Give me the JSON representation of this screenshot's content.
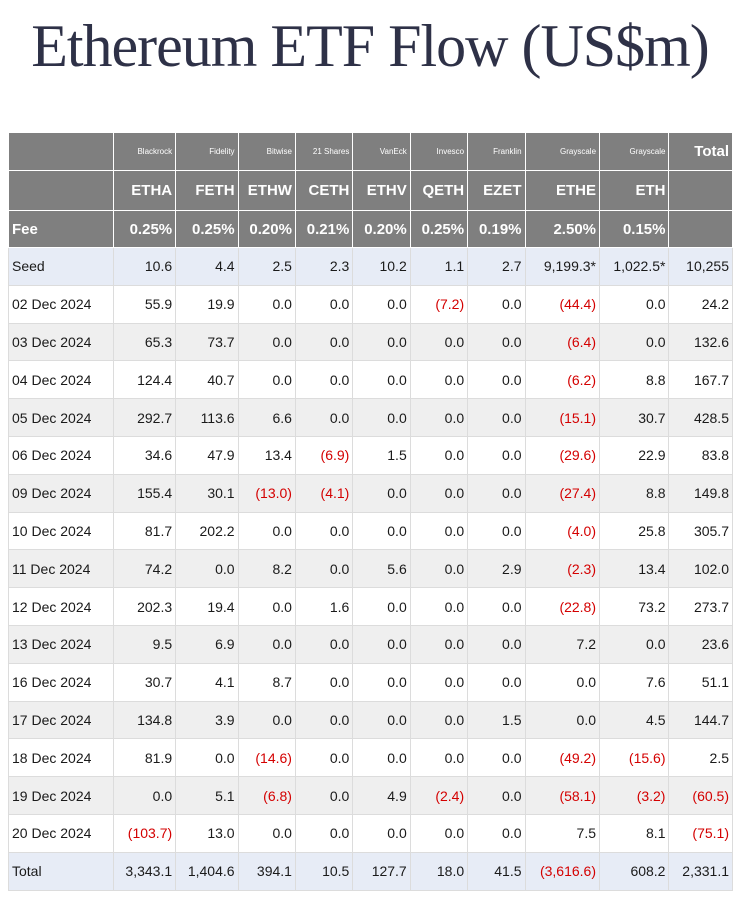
{
  "title": "Ethereum ETF Flow (US$m)",
  "table": {
    "issuers": [
      "",
      "Blackrock",
      "Fidelity",
      "Bitwise",
      "21 Shares",
      "VanEck",
      "Invesco",
      "Franklin",
      "Grayscale",
      "Grayscale",
      "Total"
    ],
    "tickers": [
      "",
      "ETHA",
      "FETH",
      "ETHW",
      "CETH",
      "ETHV",
      "QETH",
      "EZET",
      "ETHE",
      "ETH",
      ""
    ],
    "fees": [
      "Fee",
      "0.25%",
      "0.25%",
      "0.20%",
      "0.21%",
      "0.20%",
      "0.25%",
      "0.19%",
      "2.50%",
      "0.15%",
      ""
    ],
    "rows": [
      [
        "Seed",
        "10.6",
        "4.4",
        "2.5",
        "2.3",
        "10.2",
        "1.1",
        "2.7",
        "9,199.3*",
        "1,022.5*",
        "10,255"
      ],
      [
        "02 Dec 2024",
        "55.9",
        "19.9",
        "0.0",
        "0.0",
        "0.0",
        "(7.2)",
        "0.0",
        "(44.4)",
        "0.0",
        "24.2"
      ],
      [
        "03 Dec 2024",
        "65.3",
        "73.7",
        "0.0",
        "0.0",
        "0.0",
        "0.0",
        "0.0",
        "(6.4)",
        "0.0",
        "132.6"
      ],
      [
        "04 Dec 2024",
        "124.4",
        "40.7",
        "0.0",
        "0.0",
        "0.0",
        "0.0",
        "0.0",
        "(6.2)",
        "8.8",
        "167.7"
      ],
      [
        "05 Dec 2024",
        "292.7",
        "113.6",
        "6.6",
        "0.0",
        "0.0",
        "0.0",
        "0.0",
        "(15.1)",
        "30.7",
        "428.5"
      ],
      [
        "06 Dec 2024",
        "34.6",
        "47.9",
        "13.4",
        "(6.9)",
        "1.5",
        "0.0",
        "0.0",
        "(29.6)",
        "22.9",
        "83.8"
      ],
      [
        "09 Dec 2024",
        "155.4",
        "30.1",
        "(13.0)",
        "(4.1)",
        "0.0",
        "0.0",
        "0.0",
        "(27.4)",
        "8.8",
        "149.8"
      ],
      [
        "10 Dec 2024",
        "81.7",
        "202.2",
        "0.0",
        "0.0",
        "0.0",
        "0.0",
        "0.0",
        "(4.0)",
        "25.8",
        "305.7"
      ],
      [
        "11 Dec 2024",
        "74.2",
        "0.0",
        "8.2",
        "0.0",
        "5.6",
        "0.0",
        "2.9",
        "(2.3)",
        "13.4",
        "102.0"
      ],
      [
        "12 Dec 2024",
        "202.3",
        "19.4",
        "0.0",
        "1.6",
        "0.0",
        "0.0",
        "0.0",
        "(22.8)",
        "73.2",
        "273.7"
      ],
      [
        "13 Dec 2024",
        "9.5",
        "6.9",
        "0.0",
        "0.0",
        "0.0",
        "0.0",
        "0.0",
        "7.2",
        "0.0",
        "23.6"
      ],
      [
        "16 Dec 2024",
        "30.7",
        "4.1",
        "8.7",
        "0.0",
        "0.0",
        "0.0",
        "0.0",
        "0.0",
        "7.6",
        "51.1"
      ],
      [
        "17 Dec 2024",
        "134.8",
        "3.9",
        "0.0",
        "0.0",
        "0.0",
        "0.0",
        "1.5",
        "0.0",
        "4.5",
        "144.7"
      ],
      [
        "18 Dec 2024",
        "81.9",
        "0.0",
        "(14.6)",
        "0.0",
        "0.0",
        "0.0",
        "0.0",
        "(49.2)",
        "(15.6)",
        "2.5"
      ],
      [
        "19 Dec 2024",
        "0.0",
        "5.1",
        "(6.8)",
        "0.0",
        "4.9",
        "(2.4)",
        "0.0",
        "(58.1)",
        "(3.2)",
        "(60.5)"
      ],
      [
        "20 Dec 2024",
        "(103.7)",
        "13.0",
        "0.0",
        "0.0",
        "0.0",
        "0.0",
        "0.0",
        "7.5",
        "8.1",
        "(75.1)"
      ],
      [
        "Total",
        "3,343.1",
        "1,404.6",
        "394.1",
        "10.5",
        "127.7",
        "18.0",
        "41.5",
        "(3,616.6)",
        "608.2",
        "2,331.1"
      ]
    ]
  },
  "colors": {
    "header_bg": "#7f7f7f",
    "highlight_row_bg": "#e7ecf6",
    "stripe_bg": "#efefef",
    "negative": "#d40000",
    "title": "#2e3147"
  }
}
